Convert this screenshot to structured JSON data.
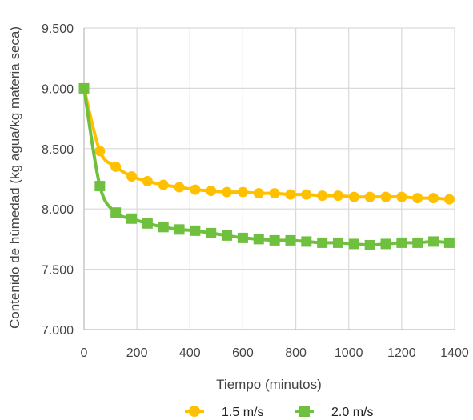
{
  "chart_data": {
    "type": "line",
    "xlabel": "Tiempo (minutos)",
    "ylabel": "Contenido de húmedad (kg agua/kg materia seca)",
    "xlim": [
      0,
      1400
    ],
    "ylim": [
      7.0,
      9.5
    ],
    "x_ticks": [
      0,
      200,
      400,
      600,
      800,
      1000,
      1200,
      1400
    ],
    "x_tick_labels": [
      "0",
      "200",
      "400",
      "600",
      "800",
      "1000",
      "1200",
      "1400"
    ],
    "y_ticks": [
      7.0,
      7.5,
      8.0,
      8.5,
      9.0,
      9.5
    ],
    "y_tick_labels": [
      "7.000",
      "7.500",
      "8.000",
      "8.500",
      "9.000",
      "9.500"
    ],
    "grid": true,
    "legend_position": "bottom",
    "series": [
      {
        "name": "1.5 m/s",
        "color": "#FFC000",
        "marker": "circle",
        "x": [
          0,
          60,
          120,
          180,
          240,
          300,
          360,
          420,
          480,
          540,
          600,
          660,
          720,
          780,
          840,
          900,
          960,
          1020,
          1080,
          1140,
          1200,
          1260,
          1320,
          1380
        ],
        "y": [
          9.0,
          8.48,
          8.35,
          8.27,
          8.23,
          8.2,
          8.18,
          8.16,
          8.15,
          8.14,
          8.14,
          8.13,
          8.13,
          8.12,
          8.12,
          8.11,
          8.11,
          8.1,
          8.1,
          8.1,
          8.1,
          8.09,
          8.09,
          8.08
        ]
      },
      {
        "name": "2.0 m/s",
        "color": "#70C040",
        "marker": "square",
        "x": [
          0,
          60,
          120,
          180,
          240,
          300,
          360,
          420,
          480,
          540,
          600,
          660,
          720,
          780,
          840,
          900,
          960,
          1020,
          1080,
          1140,
          1200,
          1260,
          1320,
          1380
        ],
        "y": [
          9.0,
          8.19,
          7.97,
          7.92,
          7.88,
          7.85,
          7.83,
          7.82,
          7.8,
          7.78,
          7.76,
          7.75,
          7.74,
          7.74,
          7.73,
          7.72,
          7.72,
          7.71,
          7.7,
          7.71,
          7.72,
          7.72,
          7.73,
          7.72
        ]
      }
    ]
  }
}
